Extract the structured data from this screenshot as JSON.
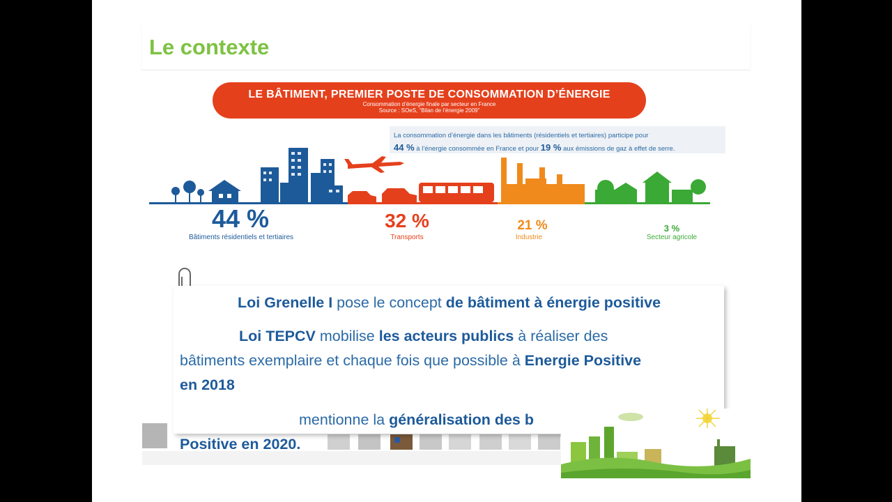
{
  "slide": {
    "title": "Le contexte"
  },
  "infographic": {
    "banner_title": "LE BÂTIMENT, PREMIER POSTE DE CONSOMMATION D’ÉNERGIE",
    "banner_sub1": "Consommation d’énergie finale par secteur en France",
    "banner_sub2": "Source : SOeS, “Bilan de l’énergie 2009”",
    "callout_line1": "La consommation d’énergie dans les bâtiments (résidentiels et tertiaires) participe pour",
    "callout_pct1": "44 %",
    "callout_mid": "à l’énergie consommée en France et pour",
    "callout_pct2": "19 %",
    "callout_end": "aux émissions de gaz à effet de serre.",
    "sectors": [
      {
        "pct": "44 %",
        "label": "Bâtiments résidentiels et tertiaires",
        "value": 44,
        "color": "#1d5a9a"
      },
      {
        "pct": "32 %",
        "label": "Transports",
        "value": 32,
        "color": "#e5401c"
      },
      {
        "pct": "21 %",
        "label": "Industrie",
        "value": 21,
        "color": "#f08a1c"
      },
      {
        "pct": "3 %",
        "label": "Secteur agricole",
        "value": 3,
        "color": "#3aa935"
      }
    ]
  },
  "content": {
    "p1_bold1": "Loi Grenelle I",
    "p1_text1": " pose le concept ",
    "p1_bold2": "de bâtiment à énergie positive",
    "p2_bold1": "Loi TEPCV",
    "p2_text1": " mobilise ",
    "p2_bold2": "les acteurs publics",
    "p2_text2": " à réaliser des",
    "p2_line2": "bâtiments exemplaire et  chaque fois que possible à ",
    "p2_bold3": "Energie Positive",
    "p2_line3": "en 2018",
    "p3_text1": "mentionne la ",
    "p3_bold1": "généralisation des b",
    "p3_line2": "Positive en 2020."
  }
}
